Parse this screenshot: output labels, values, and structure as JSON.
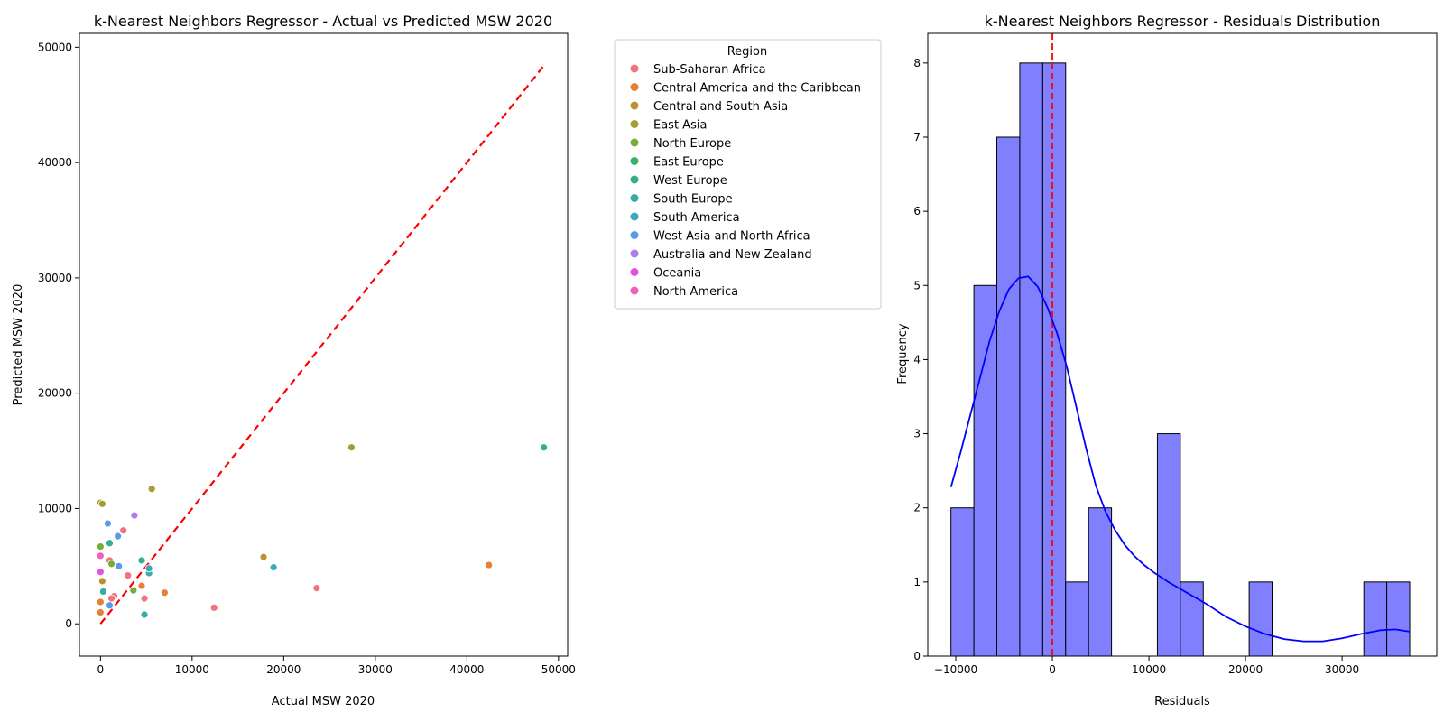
{
  "chart_data": [
    {
      "type": "scatter",
      "title": "k-Nearest Neighbors Regressor - Actual vs Predicted MSW 2020",
      "xlabel": "Actual MSW 2020",
      "ylabel": "Predicted MSW 2020",
      "xlim": [
        -2300,
        51000
      ],
      "ylim": [
        -2800,
        51200
      ],
      "xticks": [
        0,
        10000,
        20000,
        30000,
        40000,
        50000
      ],
      "yticks": [
        0,
        10000,
        20000,
        30000,
        40000,
        50000
      ],
      "reference_line": {
        "x": [
          0,
          48500
        ],
        "y": [
          0,
          48500
        ],
        "color": "#ff0000",
        "style": "dashed"
      },
      "legend": {
        "title": "Region",
        "placement": "outside-right"
      },
      "series": [
        {
          "name": "Sub-Saharan Africa",
          "color": "#f0737d",
          "points": [
            [
              2500,
              8100
            ],
            [
              1000,
              5500
            ],
            [
              3000,
              4200
            ],
            [
              1500,
              2400
            ],
            [
              1200,
              2200
            ],
            [
              4800,
              2200
            ],
            [
              12400,
              1400
            ],
            [
              23600,
              3100
            ]
          ]
        },
        {
          "name": "Central America and the Caribbean",
          "color": "#e78032",
          "points": [
            [
              0,
              1000
            ],
            [
              0,
              1900
            ],
            [
              4500,
              3300
            ],
            [
              7000,
              2700
            ],
            [
              42400,
              5100
            ]
          ]
        },
        {
          "name": "Central and South Asia",
          "color": "#c38e2e",
          "points": [
            [
              17800,
              5800
            ],
            [
              200,
              3700
            ]
          ]
        },
        {
          "name": "East Asia",
          "color": "#a59c32",
          "points": [
            [
              0,
              10500
            ],
            [
              200,
              10400
            ],
            [
              5600,
              11700
            ],
            [
              27400,
              15300
            ]
          ]
        },
        {
          "name": "North Europe",
          "color": "#77ac38",
          "points": [
            [
              0,
              6700
            ],
            [
              1200,
              5200
            ],
            [
              3600,
              2900
            ]
          ]
        },
        {
          "name": "East Europe",
          "color": "#36b26a",
          "points": []
        },
        {
          "name": "West Europe",
          "color": "#35ad8f",
          "points": [
            [
              48400,
              15300
            ],
            [
              1000,
              7000
            ],
            [
              4500,
              5500
            ]
          ]
        },
        {
          "name": "South Europe",
          "color": "#37aca6",
          "points": [
            [
              5300,
              4400
            ],
            [
              4800,
              800
            ],
            [
              300,
              2800
            ]
          ]
        },
        {
          "name": "South America",
          "color": "#3aa8c0",
          "points": [
            [
              18900,
              4900
            ],
            [
              5300,
              4800
            ]
          ]
        },
        {
          "name": "West Asia and North Africa",
          "color": "#5a9be8",
          "points": [
            [
              800,
              8700
            ],
            [
              1900,
              7600
            ],
            [
              2000,
              5000
            ],
            [
              1000,
              1600
            ]
          ]
        },
        {
          "name": "Australia and New Zealand",
          "color": "#ae7ee8",
          "points": [
            [
              3700,
              9400
            ]
          ]
        },
        {
          "name": "Oceania",
          "color": "#e44fe6",
          "points": [
            [
              0,
              4500
            ]
          ]
        },
        {
          "name": "North America",
          "color": "#f060b8",
          "points": [
            [
              0,
              5900
            ]
          ]
        }
      ]
    },
    {
      "type": "histogram",
      "title": "k-Nearest Neighbors Regressor - Residuals Distribution",
      "xlabel": "Residuals",
      "ylabel": "Frequency",
      "xlim": [
        -12900,
        39800
      ],
      "ylim": [
        0,
        8.4
      ],
      "xticks": [
        -10000,
        0,
        10000,
        20000,
        30000
      ],
      "yticks": [
        0,
        1,
        2,
        3,
        4,
        5,
        6,
        7,
        8
      ],
      "bar_color": "#8080ff",
      "bin_start": -10500,
      "bin_width": 2375,
      "counts": [
        2,
        5,
        7,
        8,
        8,
        1,
        2,
        0,
        0,
        3,
        1,
        0,
        0,
        1,
        0,
        0,
        0,
        0,
        1,
        1
      ],
      "zero_line": {
        "x": 0,
        "color": "#ff0000",
        "style": "dashed"
      },
      "kde": {
        "color": "#0000ff",
        "x": [
          -10500,
          -9500,
          -8500,
          -7500,
          -6500,
          -5500,
          -4500,
          -3500,
          -2500,
          -1500,
          -500,
          500,
          1500,
          2500,
          3500,
          4500,
          5500,
          6500,
          7500,
          8500,
          9500,
          10500,
          12000,
          14000,
          16000,
          18000,
          20000,
          22000,
          24000,
          26000,
          28000,
          30000,
          32000,
          34000,
          35500,
          37000
        ],
        "y": [
          2.28,
          2.75,
          3.25,
          3.75,
          4.25,
          4.65,
          4.95,
          5.1,
          5.12,
          4.98,
          4.7,
          4.35,
          3.9,
          3.35,
          2.8,
          2.3,
          1.95,
          1.7,
          1.5,
          1.35,
          1.23,
          1.13,
          1.0,
          0.85,
          0.7,
          0.53,
          0.4,
          0.3,
          0.23,
          0.2,
          0.2,
          0.24,
          0.3,
          0.35,
          0.36,
          0.33
        ]
      }
    }
  ]
}
